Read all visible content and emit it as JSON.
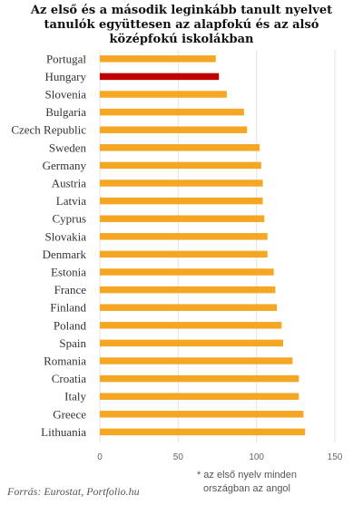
{
  "chart_data": {
    "type": "bar",
    "orientation": "horizontal",
    "title_lines": [
      "Az első és a második leginkább tanult nyelvet",
      "tanulók együttesen  az alapfokú és az alsó",
      "középfokú  iskolákban"
    ],
    "categories": [
      "Portugal",
      "Hungary",
      "Slovenia",
      "Bulgaria",
      "Czech Republic",
      "Sweden",
      "Germany",
      "Austria",
      "Latvia",
      "Cyprus",
      "Slovakia",
      "Denmark",
      "Estonia",
      "France",
      "Finland",
      "Poland",
      "Spain",
      "Romania",
      "Croatia",
      "Italy",
      "Greece",
      "Lithuania"
    ],
    "values": [
      74,
      76,
      81,
      92,
      94,
      102,
      103,
      104,
      104,
      105,
      107,
      107,
      111,
      112,
      113,
      116,
      117,
      123,
      127,
      127,
      130,
      131
    ],
    "highlight": "Hungary",
    "xlim": [
      0,
      150
    ],
    "xticks": [
      0,
      50,
      100,
      150
    ],
    "grid": "vertical",
    "note_lines": [
      "* az első nyelv minden",
      "országban az angol"
    ],
    "source": "Forrás: Eurostat, Portfolio.hu"
  },
  "colors": {
    "bar": "#f5a623",
    "highlight": "#c00000",
    "grid": "#e3e3e3"
  }
}
